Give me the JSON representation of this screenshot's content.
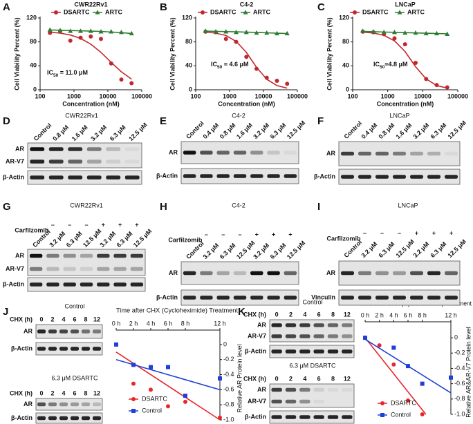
{
  "chart_data": [
    {
      "type": "line",
      "letter": "A",
      "title": "CWR22Rv1",
      "xlabel": "Concentration (nM)",
      "ylabel": "Cell Viability Percent (%)",
      "xscale": "log",
      "xlim": [
        100,
        100000
      ],
      "xticks": [
        100,
        1000,
        10000,
        100000
      ],
      "ylim": [
        0,
        120
      ],
      "yticks": [
        0,
        40,
        80,
        120
      ],
      "x": [
        195,
        391,
        781,
        1563,
        3125,
        6250,
        12500,
        25000,
        50000
      ],
      "series": [
        {
          "name": "DSARTC",
          "color": "#c0282d",
          "marker": "circle",
          "values": [
            95,
            98,
            82,
            87,
            89,
            85,
            44,
            17,
            11
          ],
          "fit": [
            96.3,
            94.6,
            91.5,
            85.8,
            76.3,
            62.5,
            45.8,
            30.0,
            17.7
          ]
        },
        {
          "name": "ARTC",
          "color": "#2e7d32",
          "marker": "triangle",
          "values": [
            100,
            99,
            98,
            98,
            98,
            97,
            97,
            96,
            94
          ],
          "fit": [
            100,
            99.5,
            99,
            98.5,
            98,
            97.5,
            96.5,
            95.5,
            94
          ]
        }
      ],
      "annotation": {
        "main": "IC",
        "sub": "50",
        "rest": " = 11.0 μM"
      }
    },
    {
      "type": "line",
      "letter": "B",
      "title": "C4-2",
      "xlabel": "Concentration (nM)",
      "ylabel": "Cell Viability Percent (%)",
      "xscale": "log",
      "xlim": [
        100,
        100000
      ],
      "xticks": [
        100,
        1000,
        10000,
        100000
      ],
      "ylim": [
        0,
        120
      ],
      "yticks": [
        0,
        40,
        80,
        120
      ],
      "x": [
        195,
        391,
        781,
        1563,
        3125,
        6250,
        12500,
        25000,
        50000
      ],
      "series": [
        {
          "name": "DSARTC",
          "color": "#c0282d",
          "marker": "circle",
          "values": [
            97,
            96,
            85,
            80,
            55,
            35,
            20,
            15,
            10
          ],
          "fit": [
            96.5,
            94.6,
            90.7,
            80.8,
            62.6,
            37.5,
            17.5,
            7.0,
            2.7
          ]
        },
        {
          "name": "ARTC",
          "color": "#2e7d32",
          "marker": "triangle",
          "values": [
            98,
            97,
            97,
            96,
            96,
            95,
            95,
            94,
            94
          ],
          "fit": [
            98,
            97.6,
            97.2,
            96.8,
            96.3,
            95.8,
            95.2,
            94.6,
            94
          ]
        }
      ],
      "annotation": {
        "main": "IC",
        "sub": "50",
        "rest": " = 4.6 μM"
      }
    },
    {
      "type": "line",
      "letter": "C",
      "title": "LNCaP",
      "xlabel": "Concentration (nM)",
      "ylabel": "Cell Viability Percent (%)",
      "xscale": "log",
      "xlim": [
        100,
        100000
      ],
      "xticks": [
        100,
        1000,
        10000,
        100000
      ],
      "ylim": [
        0,
        120
      ],
      "yticks": [
        0,
        40,
        80,
        120
      ],
      "x": [
        195,
        391,
        781,
        1563,
        3125,
        6250,
        12500,
        25000,
        50000
      ],
      "series": [
        {
          "name": "DSARTC",
          "color": "#c0282d",
          "marker": "circle",
          "values": [
            97,
            96,
            93,
            86,
            76,
            45,
            18,
            8,
            4
          ],
          "fit": [
            96.2,
            94.8,
            91.0,
            81.7,
            63.9,
            38.5,
            18.1,
            7.0,
            2.9
          ]
        },
        {
          "name": "ARTC",
          "color": "#2e7d32",
          "marker": "triangle",
          "values": [
            98,
            97,
            96,
            96,
            95,
            95,
            94,
            94,
            93
          ],
          "fit": [
            97.5,
            97,
            96.5,
            96,
            95.5,
            95,
            94.5,
            94,
            93.5
          ]
        }
      ],
      "annotation": {
        "main": "IC",
        "sub": "50",
        "rest": "=4.8 μM"
      }
    },
    {
      "type": "scatter",
      "title": "Time after CHX (Cycloheximide) Treatment",
      "ylabel": "Relative AR Protein level",
      "xlim": [
        0,
        12
      ],
      "xticks": [
        {
          "value": 0,
          "label": "0 h"
        },
        {
          "value": 2,
          "label": "2 h"
        },
        {
          "value": 4,
          "label": "4 h"
        },
        {
          "value": 6,
          "label": "6 h"
        },
        {
          "value": 8,
          "label": "8 h"
        },
        {
          "value": 12,
          "label": "12 h"
        }
      ],
      "ylim": [
        -1,
        0.1
      ],
      "yticks": [
        0,
        -0.2,
        -0.4,
        -0.6,
        -0.8,
        {
          "value": -1,
          "label": "-1.0"
        }
      ],
      "x": [
        0,
        2,
        4,
        6,
        8,
        12
      ],
      "series": [
        {
          "name": "DSARTC",
          "color": "#e8262b",
          "marker": "circle",
          "values": [
            0,
            -0.52,
            -0.6,
            -0.82,
            -0.76,
            -0.97
          ],
          "trend_x": [
            0,
            12
          ],
          "trend": [
            -0.1,
            -1.0
          ]
        },
        {
          "name": "Control",
          "color": "#1f3fd6",
          "marker": "square",
          "values": [
            0,
            -0.27,
            -0.3,
            -0.3,
            -0.68,
            -0.45
          ],
          "trend_x": [
            0,
            12
          ],
          "trend": [
            -0.2,
            -0.6
          ]
        }
      ]
    },
    {
      "type": "scatter",
      "title": "Time after CHX (Cycloheximide) Treatment",
      "ylabel": "Relative AR&AR-V7 Protein level",
      "xlim": [
        0,
        12
      ],
      "xticks": [
        {
          "value": 0,
          "label": "0 h"
        },
        {
          "value": 2,
          "label": "2 h"
        },
        {
          "value": 4,
          "label": "4 h"
        },
        {
          "value": 6,
          "label": "6 h"
        },
        {
          "value": 8,
          "label": "8 h"
        },
        {
          "value": 12,
          "label": "12 h"
        }
      ],
      "ylim": [
        -1,
        0.1
      ],
      "yticks": [
        0,
        -0.2,
        -0.4,
        -0.6,
        -0.8,
        {
          "value": -1,
          "label": "-1.0"
        }
      ],
      "x": [
        0,
        2,
        4,
        6,
        8,
        12
      ],
      "series": [
        {
          "name": "DSARTC",
          "color": "#e8262b",
          "marker": "circle",
          "values": [
            0,
            -0.1,
            -0.35,
            -0.82,
            -1.0,
            null
          ],
          "trend_x": [
            0,
            8.5
          ],
          "trend": [
            0,
            -1.0
          ]
        },
        {
          "name": "Control",
          "color": "#1f3fd6",
          "marker": "square",
          "values": [
            0,
            null,
            -0.13,
            -0.37,
            -0.6,
            -0.52
          ],
          "trend_x": [
            0,
            12
          ],
          "trend": [
            -0.02,
            -0.72
          ]
        }
      ]
    }
  ],
  "blots": [
    {
      "letter": "D",
      "title": "CWR22Rv1",
      "lanes": [
        "Control",
        "0.8 μM",
        "1.6 μM",
        "3.2 μM",
        "6.3 μM",
        "12.5 μM"
      ],
      "rows": [
        "AR",
        "AR-V7",
        "β-Actin"
      ]
    },
    {
      "letter": "E",
      "title": "C4-2",
      "lanes": [
        "Control",
        "0.4 μM",
        "0.8 μM",
        "1.6 μM",
        "3.2 μM",
        "6.3 μM",
        "12.5 μM"
      ],
      "rows": [
        "AR",
        "β-Actin"
      ]
    },
    {
      "letter": "F",
      "title": "LNCaP",
      "lanes": [
        "Control",
        "0.4 μM",
        "0.8 μM",
        "1.6 μM",
        "3.2 μM",
        "6.3 μM",
        "12.5 μM"
      ],
      "rows": [
        "AR",
        "β-Actin"
      ]
    },
    {
      "letter": "G",
      "title": "CWR22Rv1",
      "treatment": "Carfilzomib",
      "signs": [
        null,
        "–",
        "–",
        "–",
        "+",
        "+",
        "+"
      ],
      "lanes": [
        "Control",
        "3.2 μM",
        "6.3 μM",
        "12.5 μM",
        "3.2 μM",
        "6.3 μM",
        "12.5 μM"
      ],
      "rows": [
        "AR",
        "AR-V7",
        "β-Actin"
      ]
    },
    {
      "letter": "H",
      "title": "C4-2",
      "treatment": "Carfilzomib",
      "signs": [
        null,
        "–",
        "–",
        "–",
        "+",
        "+",
        "+"
      ],
      "lanes": [
        "Control",
        "3.2 μM",
        "6.3 μM",
        "12.5 μM",
        "3.2 μM",
        "6.3 μM",
        "12.5 μM"
      ],
      "rows": [
        "AR",
        "β-Actin"
      ]
    },
    {
      "letter": "I",
      "title": "LNCaP",
      "treatment": "Carfilzomib",
      "signs": [
        null,
        "–",
        "–",
        "–",
        "+",
        "+",
        "+"
      ],
      "lanes": [
        "Control",
        "3.2 μM",
        "6.3 μM",
        "12.5 μM",
        "3.2 μM",
        "6.3 μM",
        "12.5 μM"
      ],
      "rows": [
        "AR",
        "Vinculin"
      ]
    },
    {
      "letter": "J",
      "blocks": [
        {
          "title": "Control",
          "chx_label": "CHX (h)",
          "times": [
            "0",
            "2",
            "4",
            "6",
            "8",
            "12"
          ],
          "rows": [
            "AR",
            "β-Actin"
          ]
        },
        {
          "title": "6.3 μM DSARTC",
          "chx_label": "CHX (h)",
          "times": [
            "0",
            "2",
            "4",
            "6",
            "8",
            "12"
          ],
          "rows": [
            "AR",
            "β-Actin"
          ]
        }
      ]
    },
    {
      "letter": "K",
      "blocks": [
        {
          "title": "Control",
          "chx_label": "CHX (h)",
          "times": [
            "0",
            "2",
            "4",
            "6",
            "8",
            "12"
          ],
          "rows": [
            "AR",
            "AR-V7",
            "β-Actin"
          ]
        },
        {
          "title": "6.3 μM DSARTC",
          "chx_label": "CHX (h)",
          "times": [
            "0",
            "2",
            "4",
            "6",
            "8",
            "12"
          ],
          "rows": [
            "AR",
            "AR-V7",
            "β-Actin"
          ]
        }
      ]
    }
  ]
}
